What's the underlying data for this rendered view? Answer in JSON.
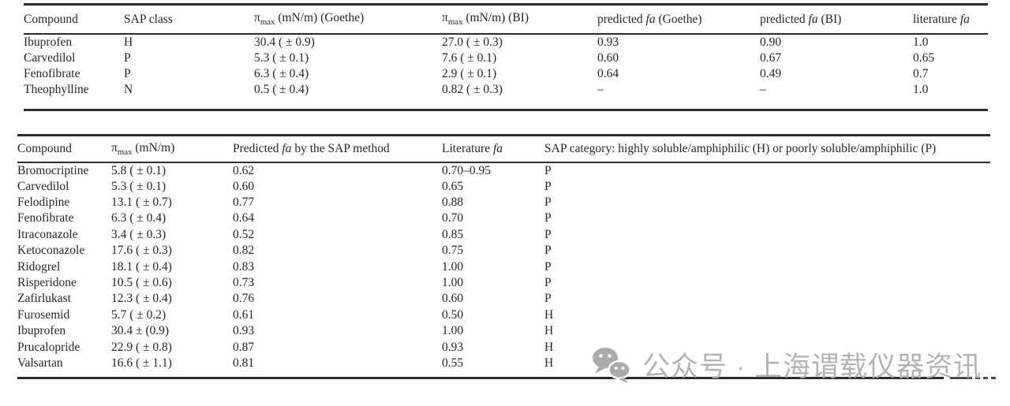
{
  "page": {
    "background": "#fefefe",
    "text_color": "#26262f",
    "rule_color": "#2b2b34",
    "watermark_color": "#b3b3b3"
  },
  "table1": {
    "headers": [
      "Compound",
      "SAP class",
      "π<sub>max</sub> (mN/m) (Goethe)",
      "π<sub>max</sub> (mN/m) (BI)",
      "predicted <i>fa</i> (Goethe)",
      "predicted <i>fa</i> (BI)",
      "literature <i>fa</i>"
    ],
    "rows": [
      [
        "Ibuprofen",
        "H",
        "30.4 ( ± 0.9)",
        "27.0 ( ± 0.3)",
        "0.93",
        "0.90",
        "1.0"
      ],
      [
        "Carvedilol",
        "P",
        "5.3 ( ± 0.1)",
        "7.6 ( ± 0.1)",
        "0.60",
        "0.67",
        "0.65"
      ],
      [
        "Fenofibrate",
        "P",
        "6.3 ( ± 0.4)",
        "2.9 ( ± 0.1)",
        "0.64",
        "0.49",
        "0.7"
      ],
      [
        "Theophylline",
        "N",
        "0.5 ( ± 0.4)",
        "0.82 ( ± 0.3)",
        "–",
        "–",
        "1.0"
      ]
    ]
  },
  "table2": {
    "headers": [
      "Compound",
      "π<sub>max</sub> (mN/m)",
      "Predicted <i>fa</i> by the SAP method",
      "Literature <i>fa</i>",
      "SAP category: highly soluble/amphiphilic (H) or poorly soluble/amphiphilic (P)"
    ],
    "rows": [
      [
        "Bromocriptine",
        "5.8 ( ± 0.1)",
        "0.62",
        "0.70–0.95",
        "P"
      ],
      [
        "Carvedilol",
        "5.3 ( ± 0.1)",
        "0.60",
        "0.65",
        "P"
      ],
      [
        "Felodipine",
        "13.1 ( ± 0.7)",
        "0.77",
        "0.88",
        "P"
      ],
      [
        "Fenofibrate",
        "6.3 ( ± 0.4)",
        "0.64",
        "0.70",
        "P"
      ],
      [
        "Itraconazole",
        "3.4 ( ± 0.3)",
        "0.52",
        "0.85",
        "P"
      ],
      [
        "Ketoconazole",
        "17.6 ( ± 0.3)",
        "0.82",
        "0.75",
        "P"
      ],
      [
        "Ridogrel",
        "18.1 ( ± 0.4)",
        "0.83",
        "1.00",
        "P"
      ],
      [
        "Risperidone",
        "10.5 ( ± 0.6)",
        "0.73",
        "1.00",
        "P"
      ],
      [
        "Zafirlukast",
        "12.3 ( ± 0.4)",
        "0.76",
        "0.60",
        "P"
      ],
      [
        "Furosemid",
        "5.7 ( ± 0.2)",
        "0.61",
        "0.50",
        "H"
      ],
      [
        "Ibuprofen",
        "30.4 ± (0.9)",
        "0.93",
        "1.00",
        "H"
      ],
      [
        "Prucalopride",
        "22.9 ( ± 0.8)",
        "0.87",
        "0.93",
        "H"
      ],
      [
        "Valsartan",
        "16.6 ( ± 1.1)",
        "0.81",
        "0.55",
        "H"
      ]
    ]
  },
  "watermark": {
    "icon": "wechat-icon",
    "text": "公众号 · 上海谓载仪器资讯"
  }
}
